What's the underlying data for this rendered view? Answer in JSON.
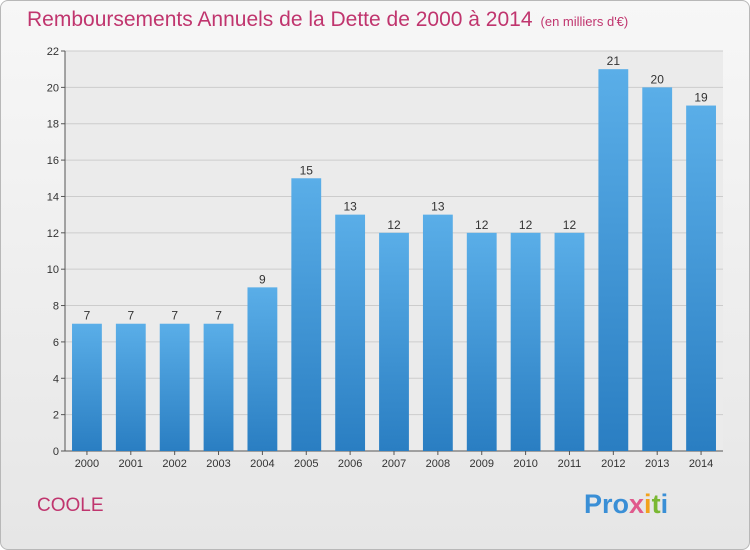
{
  "header": {
    "title": "Remboursements Annuels de la Dette de 2000 à 2014",
    "subtitle": "(en milliers d'€)"
  },
  "footer": {
    "commune": "COOLE",
    "logo_parts": [
      "Pro",
      "x",
      "i",
      "t",
      "i"
    ]
  },
  "colors": {
    "title": "#c0356e",
    "bar_top": "#5aaee8",
    "bar_bottom": "#2a7ec2",
    "grid": "#cccccc"
  },
  "chart_data": {
    "type": "bar",
    "title": "Remboursements Annuels de la Dette de 2000 à 2014",
    "unit": "(en milliers d'€)",
    "categories": [
      "2000",
      "2001",
      "2002",
      "2003",
      "2004",
      "2005",
      "2006",
      "2007",
      "2008",
      "2009",
      "2010",
      "2011",
      "2012",
      "2013",
      "2014"
    ],
    "values": [
      7,
      7,
      7,
      7,
      9,
      15,
      13,
      12,
      13,
      12,
      12,
      12,
      21,
      20,
      19
    ],
    "ylim": [
      0,
      22
    ],
    "yticks": [
      0,
      2,
      4,
      6,
      8,
      10,
      12,
      14,
      16,
      18,
      20,
      22
    ],
    "xlabel": "",
    "ylabel": "",
    "grid": true
  }
}
